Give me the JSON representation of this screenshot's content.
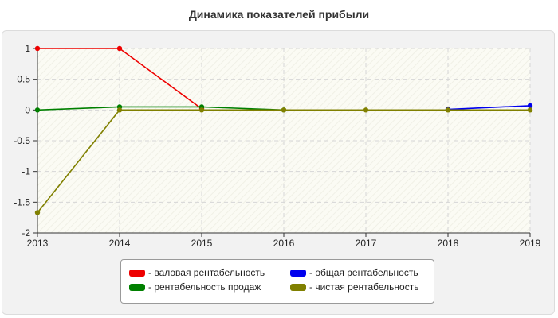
{
  "chart_data": {
    "type": "line",
    "title": "Динамика показателей прибыли",
    "xlabel": "",
    "ylabel": "",
    "x": [
      2013,
      2014,
      2015,
      2016,
      2017,
      2018,
      2019
    ],
    "xticks": [
      "2013",
      "2014",
      "2015",
      "2016",
      "2017",
      "2018",
      "2019"
    ],
    "ylim": [
      -2,
      1
    ],
    "yticks": [
      1,
      0.5,
      0,
      -0.5,
      -1,
      -1.5,
      -2
    ],
    "ytick_labels": [
      "1",
      "0.5",
      "0",
      "-0.5",
      "-1",
      "-1.5",
      "-2"
    ],
    "grid": true,
    "legend_position": "bottom-center",
    "series": [
      {
        "name": "- валовая рентабельность",
        "color": "#ee0000",
        "values": [
          1,
          1,
          0.02,
          null,
          null,
          null,
          null
        ]
      },
      {
        "name": "- общая рентабельность",
        "color": "#0000ee",
        "values": [
          null,
          null,
          null,
          null,
          null,
          0.01,
          0.07
        ]
      },
      {
        "name": "- рентабельность продаж",
        "color": "#008000",
        "values": [
          0,
          0.05,
          0.05,
          0,
          null,
          null,
          null
        ]
      },
      {
        "name": "- чистая рентабельность",
        "color": "#808000",
        "values": [
          -1.67,
          0,
          0,
          0,
          0,
          0,
          0
        ]
      }
    ]
  }
}
